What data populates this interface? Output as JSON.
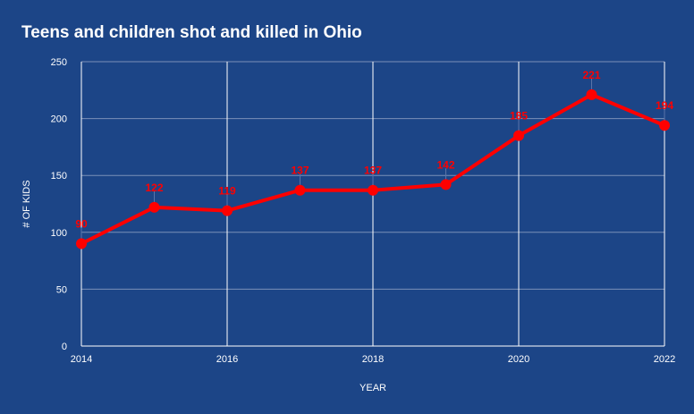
{
  "chart_data": {
    "type": "line",
    "title": "Teens and children shot and killed in Ohio",
    "xlabel": "YEAR",
    "ylabel": "# OF KIDS",
    "x": [
      2014,
      2015,
      2016,
      2017,
      2018,
      2019,
      2020,
      2021,
      2022
    ],
    "series": [
      {
        "name": "# OF KIDS",
        "values": [
          90,
          122,
          119,
          137,
          137,
          142,
          185,
          221,
          194
        ],
        "color": "#ff0000"
      }
    ],
    "xticks": [
      "2014",
      "2016",
      "2018",
      "2020",
      "2022"
    ],
    "yticks": [
      "0",
      "50",
      "100",
      "150",
      "200",
      "250"
    ],
    "xlim": [
      2014,
      2022
    ],
    "ylim": [
      0,
      250
    ],
    "grid": true,
    "data_labels": true,
    "legend": "none",
    "colors": {
      "background": "#1c4587",
      "line": "#ff0000",
      "grid_h": "#7a90b8",
      "grid_v": "#ffffff"
    }
  }
}
